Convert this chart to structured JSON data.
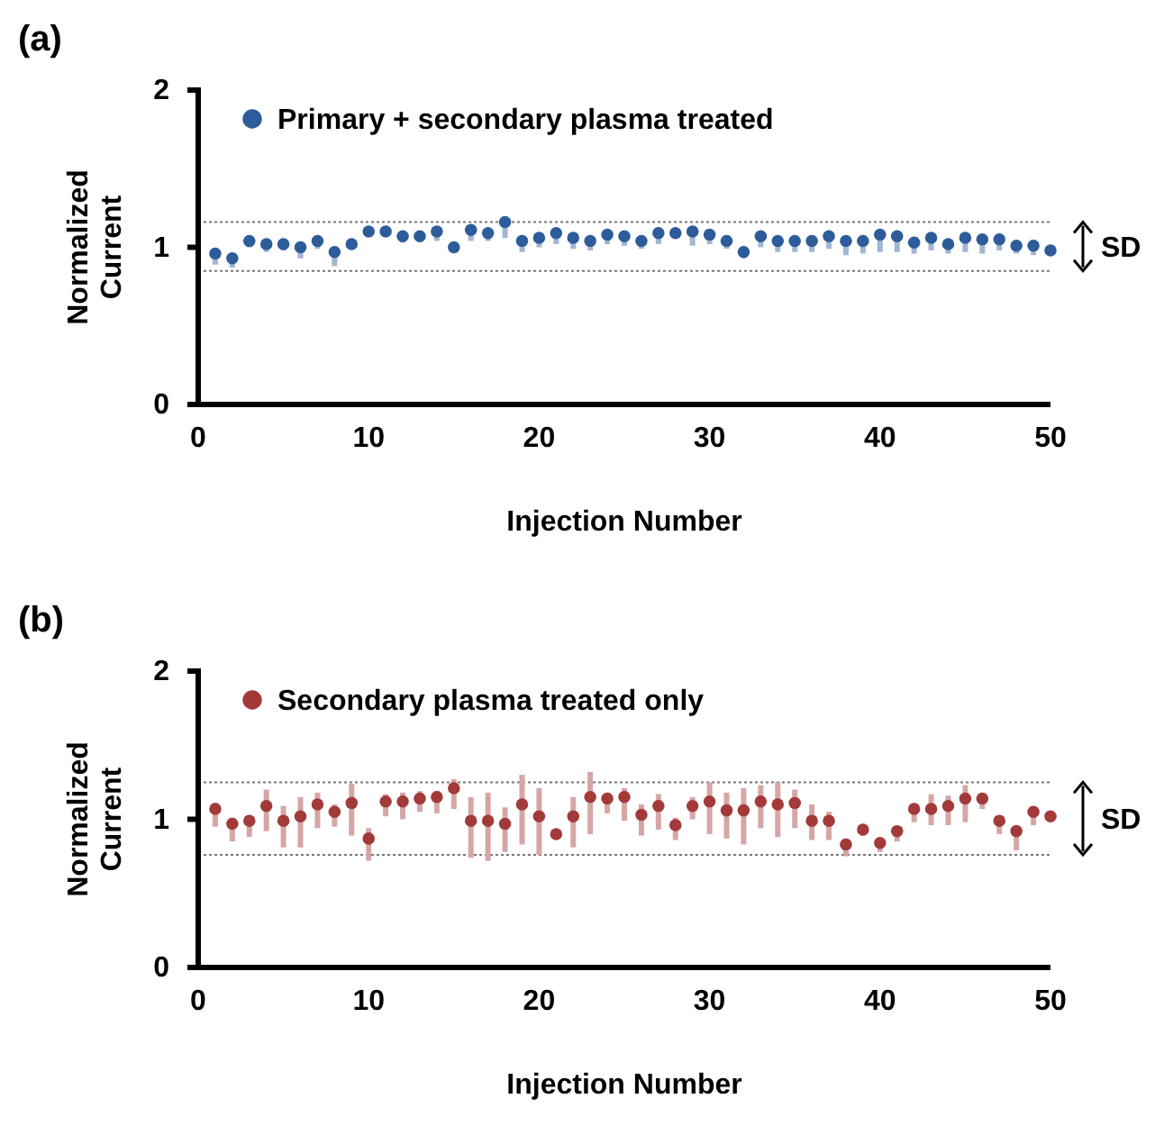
{
  "chart_data": [
    {
      "type": "scatter",
      "title": "(a)",
      "xlabel": "Injection Number",
      "ylabel": "Normalized Current",
      "xlim": [
        0,
        50
      ],
      "xticks": [
        0,
        10,
        20,
        30,
        40,
        50
      ],
      "ylim": [
        0,
        2
      ],
      "yticks": [
        0,
        1,
        2
      ],
      "grid": false,
      "legend": "top left",
      "marker": "circle",
      "x": [
        1,
        2,
        3,
        4,
        5,
        6,
        7,
        8,
        9,
        10,
        11,
        12,
        13,
        14,
        15,
        16,
        17,
        18,
        19,
        20,
        21,
        22,
        23,
        24,
        25,
        26,
        27,
        28,
        29,
        30,
        31,
        32,
        33,
        34,
        35,
        36,
        37,
        38,
        39,
        40,
        41,
        42,
        43,
        44,
        45,
        46,
        47,
        48,
        49,
        50
      ],
      "series": [
        {
          "name": "Primary + secondary plasma treated",
          "color": "#2e5c9a",
          "values": [
            0.96,
            0.93,
            1.04,
            1.02,
            1.02,
            1.0,
            1.04,
            0.97,
            1.02,
            1.1,
            1.1,
            1.07,
            1.07,
            1.1,
            1.0,
            1.11,
            1.09,
            1.16,
            1.04,
            1.06,
            1.09,
            1.06,
            1.04,
            1.08,
            1.07,
            1.04,
            1.09,
            1.09,
            1.1,
            1.08,
            1.04,
            0.97,
            1.07,
            1.04,
            1.04,
            1.04,
            1.07,
            1.04,
            1.04,
            1.08,
            1.07,
            1.03,
            1.06,
            1.02,
            1.06,
            1.05,
            1.05,
            1.01,
            1.01,
            0.98
          ],
          "errors": [
            [
              0.89,
              0.96
            ],
            [
              0.87,
              0.93
            ],
            [
              1.0,
              1.04
            ],
            [
              0.97,
              1.02
            ],
            [
              0.98,
              1.02
            ],
            [
              0.93,
              1.0
            ],
            [
              0.99,
              1.04
            ],
            [
              0.88,
              0.97
            ],
            [
              0.99,
              1.02
            ],
            [
              1.08,
              1.1
            ],
            [
              1.07,
              1.1
            ],
            [
              1.03,
              1.07
            ],
            [
              1.04,
              1.07
            ],
            [
              1.04,
              1.1
            ],
            [
              0.98,
              1.0
            ],
            [
              1.04,
              1.11
            ],
            [
              1.04,
              1.09
            ],
            [
              1.06,
              1.16
            ],
            [
              0.97,
              1.04
            ],
            [
              1.0,
              1.06
            ],
            [
              1.02,
              1.09
            ],
            [
              0.99,
              1.06
            ],
            [
              0.98,
              1.04
            ],
            [
              1.02,
              1.08
            ],
            [
              1.01,
              1.07
            ],
            [
              0.99,
              1.04
            ],
            [
              1.02,
              1.09
            ],
            [
              1.06,
              1.09
            ],
            [
              1.01,
              1.1
            ],
            [
              1.02,
              1.08
            ],
            [
              0.99,
              1.04
            ],
            [
              0.93,
              0.97
            ],
            [
              1.0,
              1.07
            ],
            [
              0.97,
              1.04
            ],
            [
              0.97,
              1.04
            ],
            [
              0.97,
              1.04
            ],
            [
              0.99,
              1.07
            ],
            [
              0.95,
              1.04
            ],
            [
              0.96,
              1.04
            ],
            [
              0.97,
              1.08
            ],
            [
              0.97,
              1.07
            ],
            [
              0.96,
              1.03
            ],
            [
              0.98,
              1.06
            ],
            [
              0.96,
              1.02
            ],
            [
              0.97,
              1.06
            ],
            [
              0.96,
              1.05
            ],
            [
              0.98,
              1.05
            ],
            [
              0.96,
              1.01
            ],
            [
              0.95,
              1.01
            ],
            null
          ]
        }
      ],
      "ref_lines": [
        {
          "axis": "y",
          "value": 0.85,
          "color": "#777777",
          "line_style": "dotted"
        },
        {
          "axis": "y",
          "value": 1.16,
          "color": "#777777",
          "line_style": "dotted"
        }
      ],
      "annotations": [
        "SD"
      ]
    },
    {
      "type": "scatter",
      "title": "(b)",
      "xlabel": "Injection Number",
      "ylabel": "Normalized Current",
      "xlim": [
        0,
        50
      ],
      "xticks": [
        0,
        10,
        20,
        30,
        40,
        50
      ],
      "ylim": [
        0,
        2
      ],
      "yticks": [
        0,
        1,
        2
      ],
      "grid": false,
      "legend": "top left",
      "marker": "circle",
      "x": [
        1,
        2,
        3,
        4,
        5,
        6,
        7,
        8,
        9,
        10,
        11,
        12,
        13,
        14,
        15,
        16,
        17,
        18,
        19,
        20,
        21,
        22,
        23,
        24,
        25,
        26,
        27,
        28,
        29,
        30,
        31,
        32,
        33,
        34,
        35,
        36,
        37,
        38,
        39,
        40,
        41,
        42,
        43,
        44,
        45,
        46,
        47,
        48,
        49,
        50
      ],
      "series": [
        {
          "name": "Secondary plasma treated only",
          "color": "#a33a3a",
          "values": [
            1.07,
            0.97,
            0.99,
            1.09,
            0.99,
            1.02,
            1.1,
            1.05,
            1.11,
            0.87,
            1.12,
            1.12,
            1.14,
            1.15,
            1.21,
            0.99,
            0.99,
            0.97,
            1.1,
            1.02,
            0.9,
            1.02,
            1.15,
            1.14,
            1.15,
            1.03,
            1.09,
            0.96,
            1.09,
            1.12,
            1.06,
            1.06,
            1.12,
            1.1,
            1.11,
            0.99,
            0.99,
            0.83,
            0.93,
            0.84,
            0.92,
            1.07,
            1.07,
            1.09,
            1.14,
            1.14,
            0.99,
            0.92,
            1.05,
            1.02
          ],
          "errors": [
            [
              0.95,
              1.11
            ],
            [
              0.85,
              1.01
            ],
            [
              0.88,
              1.01
            ],
            [
              0.92,
              1.2
            ],
            [
              0.81,
              1.09
            ],
            [
              0.81,
              1.15
            ],
            [
              0.94,
              1.18
            ],
            [
              0.95,
              1.1
            ],
            [
              0.89,
              1.24
            ],
            [
              0.72,
              0.94
            ],
            [
              1.02,
              1.17
            ],
            [
              1.0,
              1.18
            ],
            [
              1.05,
              1.19
            ],
            [
              1.04,
              1.19
            ],
            [
              1.07,
              1.27
            ],
            [
              0.74,
              1.15
            ],
            [
              0.72,
              1.18
            ],
            [
              0.78,
              1.08
            ],
            [
              0.83,
              1.3
            ],
            [
              0.76,
              1.21
            ],
            [
              0.89,
              0.92
            ],
            [
              0.81,
              1.15
            ],
            [
              0.9,
              1.32
            ],
            [
              1.04,
              1.17
            ],
            [
              0.99,
              1.21
            ],
            [
              0.89,
              1.1
            ],
            [
              0.93,
              1.17
            ],
            [
              0.86,
              1.01
            ],
            [
              1.0,
              1.15
            ],
            [
              0.9,
              1.25
            ],
            [
              0.87,
              1.18
            ],
            [
              0.83,
              1.21
            ],
            [
              0.94,
              1.23
            ],
            [
              0.88,
              1.25
            ],
            [
              0.94,
              1.2
            ],
            [
              0.86,
              1.1
            ],
            [
              0.86,
              1.05
            ],
            [
              0.75,
              0.87
            ],
            [
              0.89,
              0.95
            ],
            [
              0.78,
              0.86
            ],
            [
              0.85,
              0.92
            ],
            [
              0.98,
              1.08
            ],
            [
              0.96,
              1.17
            ],
            [
              0.96,
              1.16
            ],
            [
              0.98,
              1.23
            ],
            [
              1.07,
              1.16
            ],
            [
              0.9,
              0.99
            ],
            [
              0.79,
              0.96
            ],
            [
              0.96,
              1.06
            ],
            null
          ]
        }
      ],
      "ref_lines": [
        {
          "axis": "y",
          "value": 0.76,
          "color": "#777777",
          "line_style": "dotted"
        },
        {
          "axis": "y",
          "value": 1.25,
          "color": "#777777",
          "line_style": "dotted"
        }
      ],
      "annotations": [
        "SD"
      ]
    }
  ]
}
